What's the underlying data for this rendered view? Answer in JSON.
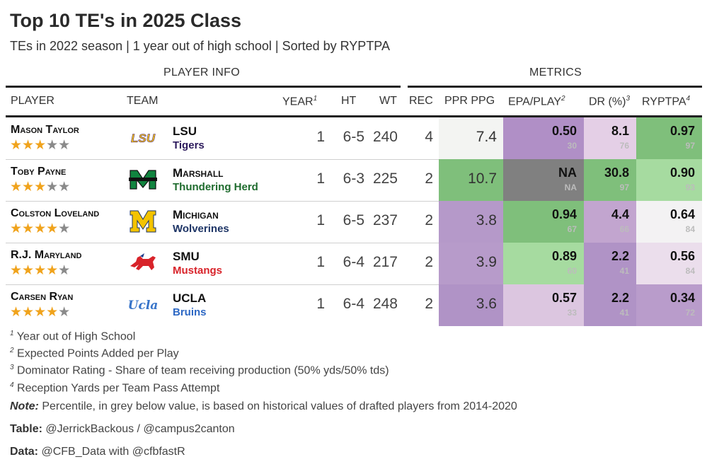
{
  "title": "Top 10 TE's in 2025 Class",
  "subtitle": "TEs in 2022 season | 1 year out of high school | Sorted by RYPTPA",
  "spanners": {
    "player_info": "PLAYER INFO",
    "metrics": "METRICS"
  },
  "columns": {
    "player": "PLAYER",
    "team": "TEAM",
    "year": "YEAR",
    "year_sup": "1",
    "ht": "HT",
    "wt": "WT",
    "rec": "REC",
    "ppr": "PPR PPG",
    "epa": "EPA/PLAY",
    "epa_sup": "2",
    "dr": "DR (%)",
    "dr_sup": "3",
    "ryptpa": "RYPTPA",
    "ryptpa_sup": "4"
  },
  "colors": {
    "star_on": "#f0a31c",
    "star_off": "#8a8a8a",
    "green_dark": "#7fbf7b",
    "green_light": "#a6dba0",
    "grey_near_white": "#f3f3f3",
    "purple_light": "#e7d4e8",
    "purple_mid": "#c2a5cf",
    "purple_dark": "#b093c6",
    "na": "#808080"
  },
  "rows": [
    {
      "name": "Mason Taylor",
      "stars": 3,
      "star_on": "★★★",
      "star_off": "★★",
      "logo": "lsu-logo",
      "school": "LSU",
      "mascot": "Tigers",
      "mascot_color": "#2c1a5c",
      "year": "1",
      "ht": "6-5",
      "wt": "240",
      "rec": "4",
      "ppr": "7.4",
      "ppr_bg": "#f3f4f2",
      "epa": "0.50",
      "epa_pct": "30",
      "epa_bg": "#b08fc6",
      "dr": "8.1",
      "dr_pct": "76",
      "dr_bg": "#e4cfe6",
      "ryptpa": "0.97",
      "ryptpa_pct": "97",
      "ryptpa_bg": "#7fbf7b"
    },
    {
      "name": "Toby Payne",
      "stars": 3,
      "star_on": "★★★",
      "star_off": "★★",
      "logo": "marshall-logo",
      "school": "Marshall",
      "mascot": "Thundering Herd",
      "mascot_color": "#1e6b2d",
      "year": "1",
      "ht": "6-3",
      "wt": "225",
      "rec": "2",
      "ppr": "10.7",
      "ppr_bg": "#7fbf7b",
      "epa": "NA",
      "epa_pct": "NA",
      "epa_bg": "#808080",
      "dr": "30.8",
      "dr_pct": "97",
      "dr_bg": "#7fbf7b",
      "ryptpa": "0.90",
      "ryptpa_pct": "93",
      "ryptpa_bg": "#a6dba0"
    },
    {
      "name": "Colston Loveland",
      "stars": 4,
      "star_on": "★★★★",
      "star_off": "★",
      "logo": "michigan-logo",
      "school": "Michigan",
      "mascot": "Wolverines",
      "mascot_color": "#1e3566",
      "year": "1",
      "ht": "6-5",
      "wt": "237",
      "rec": "2",
      "ppr": "3.8",
      "ppr_bg": "#b599c9",
      "epa": "0.94",
      "epa_pct": "67",
      "epa_bg": "#7fbf7b",
      "dr": "4.4",
      "dr_pct": "66",
      "dr_bg": "#c2a5cf",
      "ryptpa": "0.64",
      "ryptpa_pct": "84",
      "ryptpa_bg": "#f3f2f3"
    },
    {
      "name": "R.J. Maryland",
      "stars": 4,
      "star_on": "★★★★",
      "star_off": "★",
      "logo": "smu-logo",
      "school": "SMU",
      "mascot": "Mustangs",
      "mascot_color": "#d8232a",
      "year": "1",
      "ht": "6-4",
      "wt": "217",
      "rec": "2",
      "ppr": "3.9",
      "ppr_bg": "#b79bca",
      "epa": "0.89",
      "epa_pct": "60",
      "epa_bg": "#a6dba0",
      "dr": "2.2",
      "dr_pct": "41",
      "dr_bg": "#b093c6",
      "ryptpa": "0.56",
      "ryptpa_pct": "84",
      "ryptpa_bg": "#ebdeec"
    },
    {
      "name": "Carsen Ryan",
      "stars": 4,
      "star_on": "★★★★",
      "star_off": "★",
      "logo": "ucla-logo",
      "school": "UCLA",
      "mascot": "Bruins",
      "mascot_color": "#2d68c4",
      "year": "1",
      "ht": "6-4",
      "wt": "248",
      "rec": "2",
      "ppr": "3.6",
      "ppr_bg": "#b093c6",
      "epa": "0.57",
      "epa_pct": "33",
      "epa_bg": "#dcc6e0",
      "dr": "2.2",
      "dr_pct": "41",
      "dr_bg": "#b093c6",
      "ryptpa": "0.34",
      "ryptpa_pct": "72",
      "ryptpa_bg": "#b99ccb"
    }
  ],
  "footnotes": [
    {
      "sup": "1",
      "text": "Year out of High School"
    },
    {
      "sup": "2",
      "text": "Expected Points Added per Play"
    },
    {
      "sup": "3",
      "text": "Dominator Rating - Share of team receiving production (50% yds/50% tds)"
    },
    {
      "sup": "4",
      "text": "Reception Yards per Team Pass Attempt"
    }
  ],
  "note_label": "Note:",
  "note_text": "Percentile, in grey below value, is based on historical values of drafted players from 2014-2020",
  "table_label": "Table:",
  "table_text": "@JerrickBackous / @campus2canton",
  "data_label": "Data:",
  "data_text": "@CFB_Data with @cfbfastR"
}
